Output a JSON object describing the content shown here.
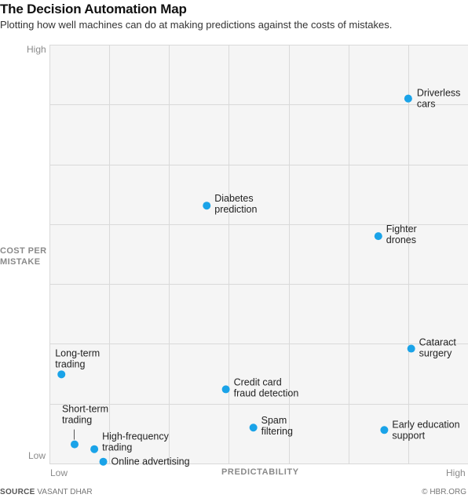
{
  "header": {
    "title": "The Decision Automation Map",
    "subtitle": "Plotting how well machines can do at making predictions against the costs of mistakes."
  },
  "axes": {
    "y_high": "High",
    "y_low": "Low",
    "y_title_line1": "COST PER",
    "y_title_line2": "MISTAKE",
    "x_low": "Low",
    "x_high": "High",
    "x_title": "PREDICTABILITY"
  },
  "footer": {
    "source_label": "SOURCE",
    "source_value": "VASANT DHAR",
    "credit": "© HBR.ORG"
  },
  "colors": {
    "point": "#1aa3e8",
    "grid": "#d9d9d9",
    "plot_bg": "#f5f5f5"
  },
  "chart_data": {
    "type": "scatter",
    "title": "The Decision Automation Map",
    "subtitle": "Plotting how well machines can do at making predictions against the costs of mistakes.",
    "xlabel": "PREDICTABILITY",
    "ylabel": "COST PER MISTAKE",
    "xlim": [
      0,
      7
    ],
    "ylim": [
      0,
      7
    ],
    "x_tick_labels": [
      "Low",
      "High"
    ],
    "y_tick_labels": [
      "Low",
      "High"
    ],
    "grid": true,
    "points": [
      {
        "label": [
          "Driverless",
          "cars"
        ],
        "x": 6.0,
        "y": 6.1
      },
      {
        "label": [
          "Diabetes",
          "prediction"
        ],
        "x": 2.63,
        "y": 4.31
      },
      {
        "label": [
          "Fighter",
          "drones"
        ],
        "x": 5.5,
        "y": 3.8
      },
      {
        "label": [
          "Cataract",
          "surgery"
        ],
        "x": 6.05,
        "y": 1.92
      },
      {
        "label": [
          "Long-term",
          "trading"
        ],
        "x": 0.2,
        "y": 1.49
      },
      {
        "label": [
          "Credit card",
          "fraud detection"
        ],
        "x": 2.95,
        "y": 1.24
      },
      {
        "label": [
          "Short-term",
          "trading"
        ],
        "x": 0.42,
        "y": 0.32
      },
      {
        "label": [
          "High-frequency",
          "trading"
        ],
        "x": 0.75,
        "y": 0.24
      },
      {
        "label": [
          "Spam",
          "filtering"
        ],
        "x": 3.41,
        "y": 0.6
      },
      {
        "label": [
          "Early education",
          "support"
        ],
        "x": 5.6,
        "y": 0.56
      },
      {
        "label": [
          "Online advertising"
        ],
        "x": 0.9,
        "y": 0.03
      }
    ]
  }
}
